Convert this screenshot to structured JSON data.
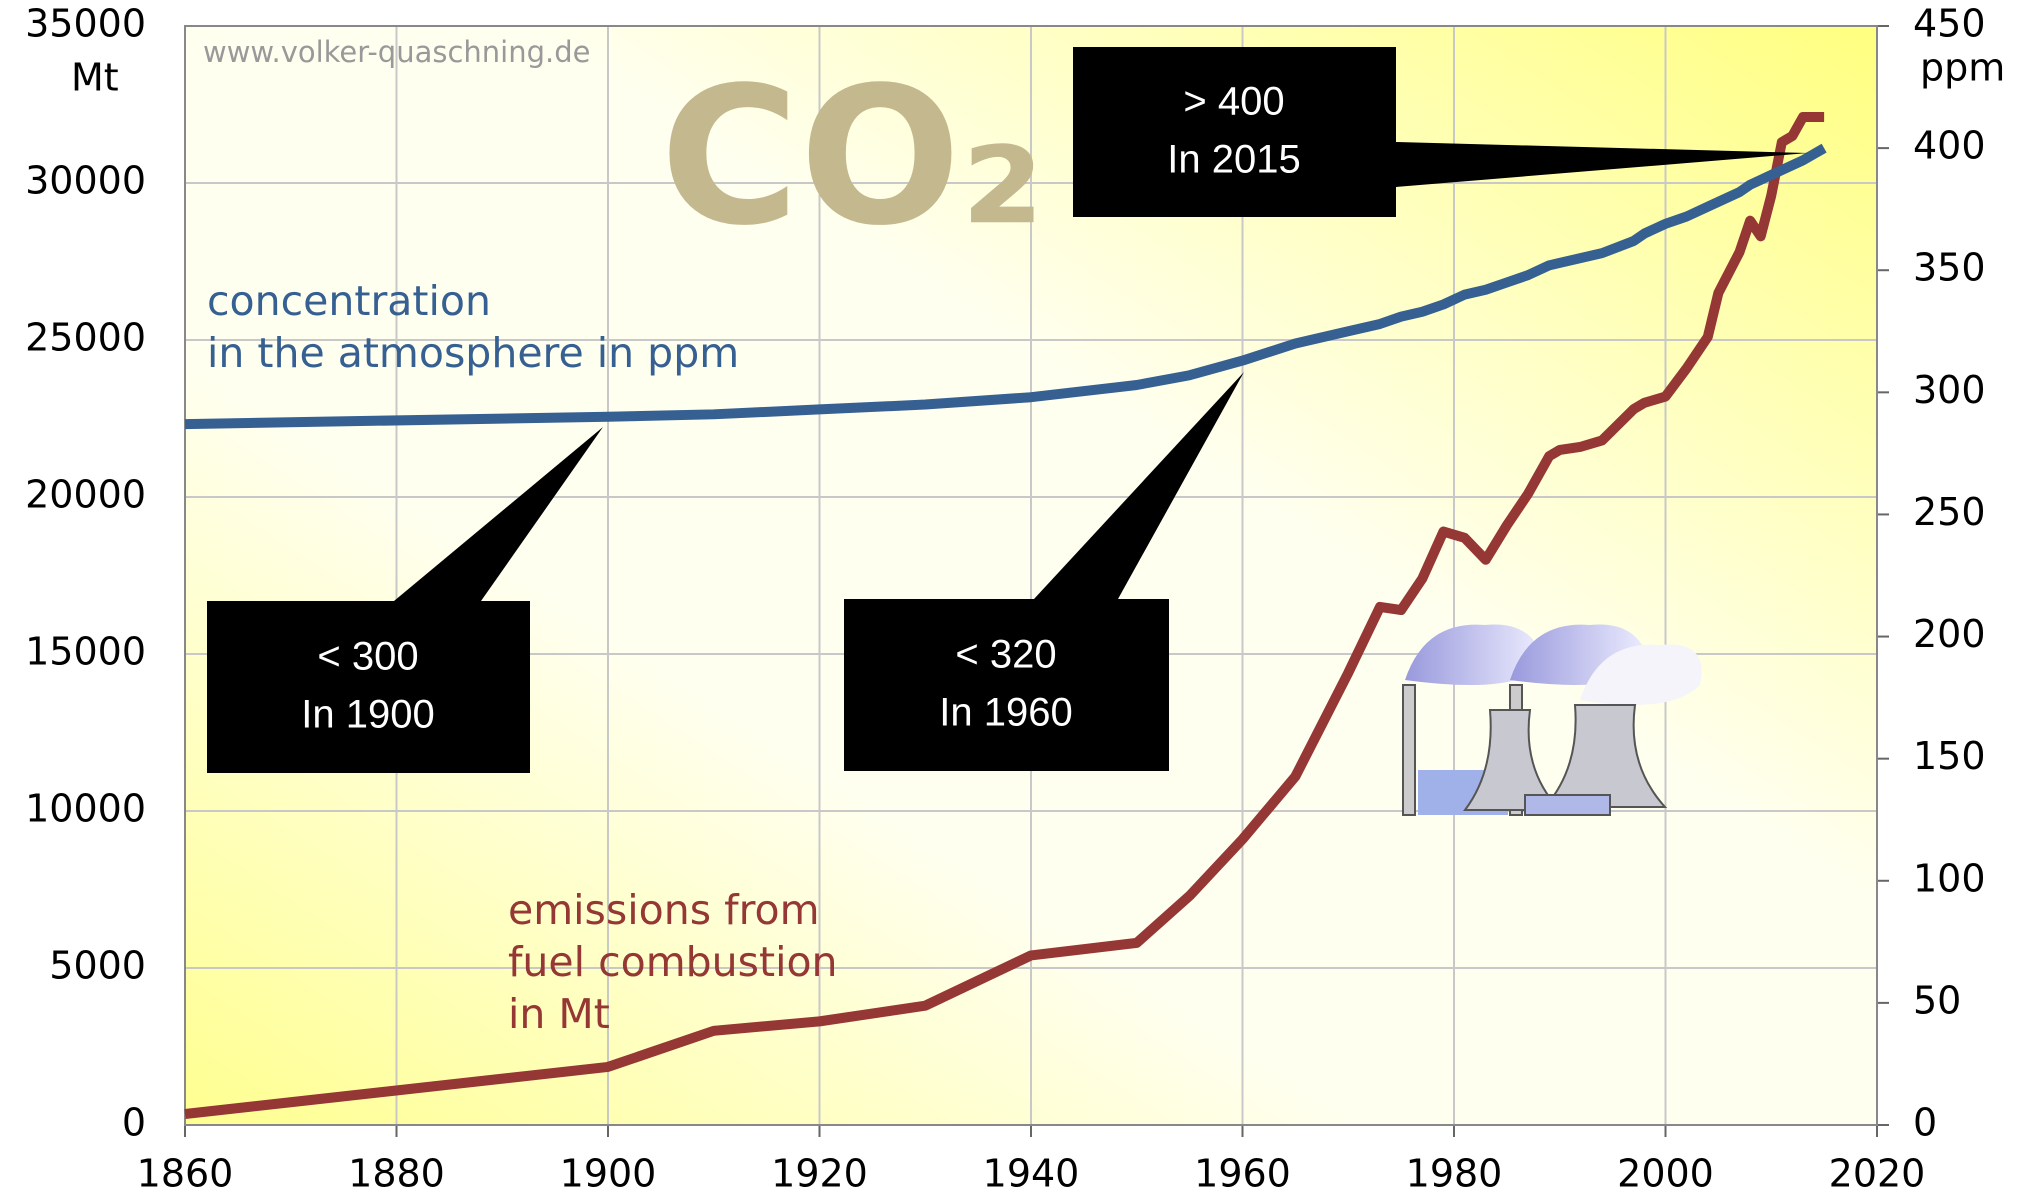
{
  "chart_data": {
    "type": "line",
    "title": "CO₂",
    "watermark": "www.volker-quaschning.de",
    "ylabel": "Mt",
    "y2label": "ppm",
    "x": [
      1860,
      1900,
      1910,
      1920,
      1930,
      1940,
      1950,
      1955,
      1960,
      1965,
      1970,
      1973,
      1975,
      1977,
      1979,
      1981,
      1983,
      1985,
      1987,
      1989,
      1990,
      1992,
      1994,
      1997,
      1998,
      2000,
      2002,
      2004,
      2005,
      2007,
      2008,
      2009,
      2010,
      2011,
      2012,
      2013,
      2015
    ],
    "series": [
      {
        "name": "emissions from fuel combustion in Mt",
        "color": "#953735",
        "values": [
          350,
          1850,
          3000,
          3300,
          3800,
          5400,
          5800,
          7300,
          9100,
          11100,
          14400,
          16500,
          16400,
          17400,
          18900,
          18700,
          18000,
          19100,
          20100,
          21300,
          21500,
          21600,
          21800,
          22800,
          23000,
          23200,
          24100,
          25100,
          26500,
          27800,
          28800,
          28300,
          29600,
          31300,
          31500,
          32100,
          32100
        ]
      },
      {
        "name": "concentration in the atmosphere in ppm",
        "color": "#376092",
        "axis": "y2",
        "values": [
          287,
          290,
          291,
          293,
          295,
          298,
          303,
          307,
          313,
          320,
          325,
          328,
          331,
          333,
          336,
          340,
          342,
          345,
          348,
          352,
          353,
          355,
          357,
          362,
          365,
          369,
          372,
          376,
          378,
          382,
          385,
          387,
          389,
          391,
          393,
          395,
          400
        ]
      }
    ],
    "series_labels": [
      {
        "lines": [
          "emissions from",
          "fuel combustion",
          "in Mt"
        ]
      },
      {
        "lines": [
          "concentration",
          "in the atmosphere in ppm"
        ]
      }
    ],
    "callouts": [
      {
        "lines": [
          "< 300",
          "In 1900"
        ]
      },
      {
        "lines": [
          "< 320",
          "In 1960"
        ]
      },
      {
        "lines": [
          "> 400",
          "In 2015"
        ]
      }
    ],
    "xlim": [
      1860,
      2020
    ],
    "xticks": [
      1860,
      1880,
      1900,
      1920,
      1940,
      1960,
      1980,
      2000,
      2020
    ],
    "ylim": [
      0,
      35000
    ],
    "yticks": [
      0,
      5000,
      10000,
      15000,
      20000,
      25000,
      30000,
      35000
    ],
    "y2lim": [
      0,
      450
    ],
    "y2ticks": [
      0,
      50,
      100,
      150,
      200,
      250,
      300,
      350,
      400,
      450
    ],
    "grid": true
  }
}
